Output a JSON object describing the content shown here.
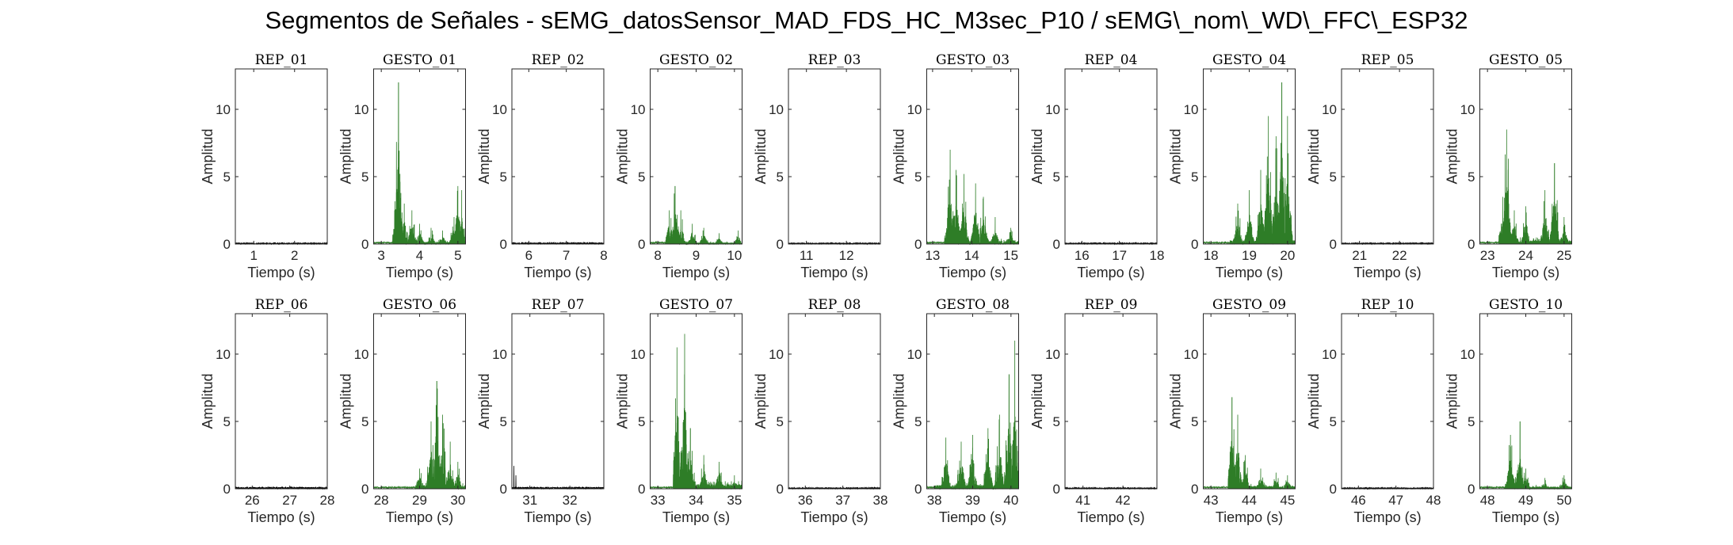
{
  "title": "Segmentos de Señales - sEMG_datosSensor_MAD_FDS_HC_M3sec_P10 / sEMG\\_nom\\_WD\\_FFC\\_ESP32",
  "colors": {
    "rest": "#000000",
    "gesture": "#2e7d27",
    "axis": "#262626"
  },
  "chart_data": [
    {
      "type": "line",
      "title": "REP_01",
      "xlabel": "Tiempo (s)",
      "ylabel": "Amplitud",
      "xlim": [
        0.55,
        2.8
      ],
      "ylim": [
        0,
        13
      ],
      "xticks": [
        1,
        2
      ],
      "yticks": [
        0,
        5,
        10
      ],
      "series": [
        {
          "kind": "rest",
          "start": 0.55,
          "end": 2.8,
          "base": 0.08,
          "peaks": []
        }
      ]
    },
    {
      "type": "line",
      "title": "GESTO_01",
      "xlabel": "Tiempo (s)",
      "ylabel": "Amplitud",
      "xlim": [
        2.8,
        5.2
      ],
      "ylim": [
        0,
        13
      ],
      "xticks": [
        3,
        4,
        5
      ],
      "yticks": [
        0,
        5,
        10
      ],
      "series": [
        {
          "kind": "gesture",
          "start": 2.8,
          "end": 5.2,
          "onset": 3.3,
          "base": 0.3,
          "peaks": [
            [
              3.35,
              2.5
            ],
            [
              3.45,
              12.0
            ],
            [
              3.5,
              3.0
            ],
            [
              3.6,
              3.0
            ],
            [
              3.8,
              2.5
            ],
            [
              4.0,
              1.5
            ],
            [
              4.3,
              1.2
            ],
            [
              4.6,
              1.0
            ],
            [
              4.9,
              2.0
            ],
            [
              5.0,
              4.3
            ],
            [
              5.1,
              4.0
            ]
          ]
        }
      ]
    },
    {
      "type": "line",
      "title": "REP_02",
      "xlabel": "Tiempo (s)",
      "ylabel": "Amplitud",
      "xlim": [
        5.55,
        8.0
      ],
      "ylim": [
        0,
        13
      ],
      "xticks": [
        6,
        7,
        8
      ],
      "yticks": [
        0,
        5,
        10
      ],
      "series": [
        {
          "kind": "rest",
          "start": 5.55,
          "end": 8.0,
          "base": 0.1,
          "peaks": []
        }
      ]
    },
    {
      "type": "line",
      "title": "GESTO_02",
      "xlabel": "Tiempo (s)",
      "ylabel": "Amplitud",
      "xlim": [
        7.8,
        10.2
      ],
      "ylim": [
        0,
        13
      ],
      "xticks": [
        8,
        9,
        10
      ],
      "yticks": [
        0,
        5,
        10
      ],
      "series": [
        {
          "kind": "gesture",
          "start": 7.8,
          "end": 10.2,
          "onset": 8.2,
          "base": 0.2,
          "peaks": [
            [
              8.3,
              2.5
            ],
            [
              8.45,
              4.3
            ],
            [
              8.6,
              2.5
            ],
            [
              8.9,
              1.5
            ],
            [
              9.2,
              1.2
            ],
            [
              9.6,
              0.8
            ],
            [
              10.1,
              1.0
            ]
          ]
        }
      ]
    },
    {
      "type": "line",
      "title": "REP_03",
      "xlabel": "Tiempo (s)",
      "ylabel": "Amplitud",
      "xlim": [
        10.55,
        12.85
      ],
      "ylim": [
        0,
        13
      ],
      "xticks": [
        11,
        12
      ],
      "yticks": [
        0,
        5,
        10
      ],
      "series": [
        {
          "kind": "rest",
          "start": 10.55,
          "end": 12.85,
          "base": 0.08,
          "peaks": []
        }
      ]
    },
    {
      "type": "line",
      "title": "GESTO_03",
      "xlabel": "Tiempo (s)",
      "ylabel": "Amplitud",
      "xlim": [
        12.85,
        15.2
      ],
      "ylim": [
        0,
        13
      ],
      "xticks": [
        13,
        14,
        15
      ],
      "yticks": [
        0,
        5,
        10
      ],
      "series": [
        {
          "kind": "gesture",
          "start": 12.85,
          "end": 15.2,
          "onset": 13.3,
          "base": 0.4,
          "peaks": [
            [
              13.45,
              7.0
            ],
            [
              13.6,
              5.5
            ],
            [
              13.8,
              5.2
            ],
            [
              14.1,
              4.5
            ],
            [
              14.3,
              3.5
            ],
            [
              14.6,
              2.0
            ],
            [
              15.0,
              1.2
            ]
          ]
        }
      ]
    },
    {
      "type": "line",
      "title": "REP_04",
      "xlabel": "Tiempo (s)",
      "ylabel": "Amplitud",
      "xlim": [
        15.55,
        18.0
      ],
      "ylim": [
        0,
        13
      ],
      "xticks": [
        16,
        17,
        18
      ],
      "yticks": [
        0,
        5,
        10
      ],
      "series": [
        {
          "kind": "rest",
          "start": 15.55,
          "end": 18.0,
          "base": 0.08,
          "peaks": []
        }
      ]
    },
    {
      "type": "line",
      "title": "GESTO_04",
      "xlabel": "Tiempo (s)",
      "ylabel": "Amplitud",
      "xlim": [
        17.8,
        20.2
      ],
      "ylim": [
        0,
        13
      ],
      "xticks": [
        18,
        19,
        20
      ],
      "yticks": [
        0,
        5,
        10
      ],
      "series": [
        {
          "kind": "gesture",
          "start": 17.8,
          "end": 20.2,
          "onset": 18.5,
          "base": 0.5,
          "peaks": [
            [
              18.7,
              3.0
            ],
            [
              19.0,
              4.0
            ],
            [
              19.3,
              5.5
            ],
            [
              19.5,
              9.5
            ],
            [
              19.7,
              8.0
            ],
            [
              19.85,
              12.0
            ],
            [
              20.0,
              9.5
            ]
          ]
        }
      ]
    },
    {
      "type": "line",
      "title": "REP_05",
      "xlabel": "Tiempo (s)",
      "ylabel": "Amplitud",
      "xlim": [
        20.55,
        22.85
      ],
      "ylim": [
        0,
        13
      ],
      "xticks": [
        21,
        22
      ],
      "yticks": [
        0,
        5,
        10
      ],
      "series": [
        {
          "kind": "rest",
          "start": 20.55,
          "end": 22.85,
          "base": 0.08,
          "peaks": []
        }
      ]
    },
    {
      "type": "line",
      "title": "GESTO_05",
      "xlabel": "Tiempo (s)",
      "ylabel": "Amplitud",
      "xlim": [
        22.8,
        25.2
      ],
      "ylim": [
        0,
        13
      ],
      "xticks": [
        23,
        24,
        25
      ],
      "yticks": [
        0,
        5,
        10
      ],
      "series": [
        {
          "kind": "gesture",
          "start": 22.8,
          "end": 25.2,
          "onset": 23.3,
          "base": 0.5,
          "peaks": [
            [
              23.4,
              3.5
            ],
            [
              23.5,
              8.5
            ],
            [
              23.7,
              2.5
            ],
            [
              24.0,
              2.8
            ],
            [
              24.5,
              4.0
            ],
            [
              24.75,
              6.0
            ],
            [
              25.0,
              2.0
            ]
          ]
        }
      ]
    },
    {
      "type": "line",
      "title": "REP_06",
      "xlabel": "Tiempo (s)",
      "ylabel": "Amplitud",
      "xlim": [
        25.55,
        28.0
      ],
      "ylim": [
        0,
        13
      ],
      "xticks": [
        26,
        27,
        28
      ],
      "yticks": [
        0,
        5,
        10
      ],
      "series": [
        {
          "kind": "rest",
          "start": 25.55,
          "end": 28.0,
          "base": 0.12,
          "peaks": []
        }
      ]
    },
    {
      "type": "line",
      "title": "GESTO_06",
      "xlabel": "Tiempo (s)",
      "ylabel": "Amplitud",
      "xlim": [
        27.8,
        30.2
      ],
      "ylim": [
        0,
        13
      ],
      "xticks": [
        28,
        29,
        30
      ],
      "yticks": [
        0,
        5,
        10
      ],
      "series": [
        {
          "kind": "gesture",
          "start": 27.8,
          "end": 30.2,
          "onset": 28.9,
          "base": 0.5,
          "peaks": [
            [
              29.0,
              1.5
            ],
            [
              29.3,
              5.0
            ],
            [
              29.45,
              8.0
            ],
            [
              29.6,
              5.5
            ],
            [
              29.8,
              3.5
            ],
            [
              30.0,
              2.0
            ]
          ]
        }
      ]
    },
    {
      "type": "line",
      "title": "REP_07",
      "xlabel": "Tiempo (s)",
      "ylabel": "Amplitud",
      "xlim": [
        30.55,
        32.85
      ],
      "ylim": [
        0,
        13
      ],
      "xticks": [
        31,
        32
      ],
      "yticks": [
        0,
        5,
        10
      ],
      "series": [
        {
          "kind": "rest",
          "start": 30.55,
          "end": 32.85,
          "base": 0.12,
          "peaks": [
            [
              30.6,
              1.7
            ],
            [
              30.65,
              1.0
            ]
          ]
        }
      ]
    },
    {
      "type": "line",
      "title": "GESTO_07",
      "xlabel": "Tiempo (s)",
      "ylabel": "Amplitud",
      "xlim": [
        32.8,
        35.2
      ],
      "ylim": [
        0,
        13
      ],
      "xticks": [
        33,
        34,
        35
      ],
      "yticks": [
        0,
        5,
        10
      ],
      "series": [
        {
          "kind": "gesture",
          "start": 32.8,
          "end": 35.2,
          "onset": 33.4,
          "base": 0.6,
          "peaks": [
            [
              33.5,
              10.5
            ],
            [
              33.7,
              11.5
            ],
            [
              33.85,
              4.5
            ],
            [
              34.2,
              2.5
            ],
            [
              34.6,
              2.0
            ],
            [
              35.0,
              1.0
            ]
          ]
        }
      ]
    },
    {
      "type": "line",
      "title": "REP_08",
      "xlabel": "Tiempo (s)",
      "ylabel": "Amplitud",
      "xlim": [
        35.55,
        38.0
      ],
      "ylim": [
        0,
        13
      ],
      "xticks": [
        36,
        37,
        38
      ],
      "yticks": [
        0,
        5,
        10
      ],
      "series": [
        {
          "kind": "rest",
          "start": 35.55,
          "end": 38.0,
          "base": 0.08,
          "peaks": []
        }
      ]
    },
    {
      "type": "line",
      "title": "GESTO_08",
      "xlabel": "Tiempo (s)",
      "ylabel": "Amplitud",
      "xlim": [
        37.8,
        40.2
      ],
      "ylim": [
        0,
        13
      ],
      "xticks": [
        38,
        39,
        40
      ],
      "yticks": [
        0,
        5,
        10
      ],
      "series": [
        {
          "kind": "gesture",
          "start": 37.8,
          "end": 40.2,
          "onset": 38.0,
          "base": 0.5,
          "peaks": [
            [
              38.3,
              3.8
            ],
            [
              38.7,
              3.5
            ],
            [
              39.0,
              4.0
            ],
            [
              39.4,
              4.5
            ],
            [
              39.7,
              5.5
            ],
            [
              39.95,
              8.5
            ],
            [
              40.1,
              11.0
            ]
          ]
        }
      ]
    },
    {
      "type": "line",
      "title": "REP_09",
      "xlabel": "Tiempo (s)",
      "ylabel": "Amplitud",
      "xlim": [
        40.55,
        42.85
      ],
      "ylim": [
        0,
        13
      ],
      "xticks": [
        41,
        42
      ],
      "yticks": [
        0,
        5,
        10
      ],
      "series": [
        {
          "kind": "rest",
          "start": 40.55,
          "end": 42.85,
          "base": 0.08,
          "peaks": []
        }
      ]
    },
    {
      "type": "line",
      "title": "GESTO_09",
      "xlabel": "Tiempo (s)",
      "ylabel": "Amplitud",
      "xlim": [
        42.8,
        45.2
      ],
      "ylim": [
        0,
        13
      ],
      "xticks": [
        43,
        44,
        45
      ],
      "yticks": [
        0,
        5,
        10
      ],
      "series": [
        {
          "kind": "gesture",
          "start": 42.8,
          "end": 45.2,
          "onset": 43.45,
          "base": 0.4,
          "peaks": [
            [
              43.55,
              6.8
            ],
            [
              43.7,
              5.5
            ],
            [
              43.9,
              2.5
            ],
            [
              44.3,
              1.5
            ],
            [
              44.7,
              1.2
            ],
            [
              45.0,
              1.0
            ]
          ]
        }
      ]
    },
    {
      "type": "line",
      "title": "REP_10",
      "xlabel": "Tiempo (s)",
      "ylabel": "Amplitud",
      "xlim": [
        45.55,
        48.0
      ],
      "ylim": [
        0,
        13
      ],
      "xticks": [
        46,
        47,
        48
      ],
      "yticks": [
        0,
        5,
        10
      ],
      "series": [
        {
          "kind": "rest",
          "start": 45.55,
          "end": 48.0,
          "base": 0.08,
          "peaks": []
        }
      ]
    },
    {
      "type": "line",
      "title": "GESTO_10",
      "xlabel": "Tiempo (s)",
      "ylabel": "Amplitud",
      "xlim": [
        47.8,
        50.2
      ],
      "ylim": [
        0,
        13
      ],
      "xticks": [
        48,
        49,
        50
      ],
      "yticks": [
        0,
        5,
        10
      ],
      "series": [
        {
          "kind": "gesture",
          "start": 47.8,
          "end": 50.2,
          "onset": 48.45,
          "base": 0.3,
          "peaks": [
            [
              48.6,
              4.0
            ],
            [
              48.85,
              5.0
            ],
            [
              49.0,
              1.5
            ],
            [
              49.5,
              0.8
            ],
            [
              50.0,
              1.0
            ]
          ]
        }
      ]
    }
  ]
}
